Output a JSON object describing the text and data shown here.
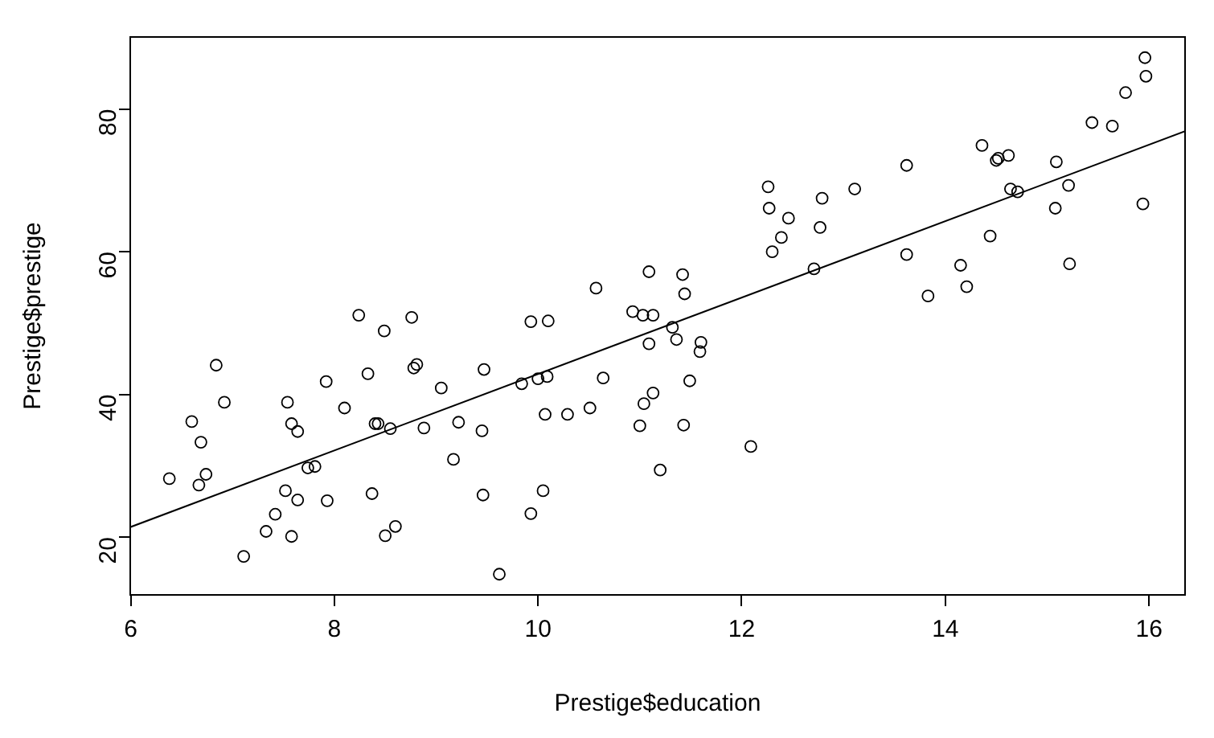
{
  "chart_data": {
    "type": "scatter",
    "xlabel": "Prestige$education",
    "ylabel": "Prestige$prestige",
    "xlim": [
      5.996,
      16.354
    ],
    "ylim": [
      11.9,
      90.1
    ],
    "xticks": [
      6,
      8,
      10,
      12,
      14,
      16
    ],
    "yticks": [
      20,
      40,
      60,
      80
    ],
    "grid": false,
    "legend": false,
    "marker": "circle",
    "series": [
      {
        "type": "scatter",
        "color": "#000000",
        "x": [
          13.11,
          12.26,
          12.77,
          11.42,
          14.62,
          15.64,
          15.09,
          15.44,
          14.52,
          14.64,
          12.39,
          12.3,
          13.83,
          14.44,
          14.36,
          14.21,
          15.77,
          14.15,
          15.22,
          14.5,
          15.97,
          13.62,
          15.08,
          15.96,
          15.94,
          14.71,
          12.46,
          9.45,
          13.62,
          15.21,
          12.79,
          11.09,
          12.71,
          11.44,
          11.59,
          11.49,
          11.32,
          10.64,
          11.36,
          9.17,
          12.09,
          11.04,
          9.22,
          10.07,
          10.51,
          11.2,
          11.13,
          11.43,
          11.0,
          9.84,
          11.13,
          10.05,
          9.62,
          9.93,
          11.6,
          11.09,
          11.03,
          9.47,
          10.93,
          7.74,
          8.5,
          10.57,
          9.46,
          7.33,
          7.11,
          7.58,
          6.84,
          8.6,
          8.88,
          7.54,
          7.64,
          7.64,
          7.42,
          6.69,
          6.74,
          10.09,
          8.81,
          8.4,
          7.92,
          8.43,
          8.78,
          8.76,
          10.29,
          6.38,
          8.1,
          10.1,
          6.67,
          9.05,
          9.93,
          8.24,
          6.92,
          6.6,
          7.81,
          8.33,
          7.52,
          12.27,
          8.49,
          7.58,
          7.93,
          8.37,
          10.0,
          8.55
        ],
        "values": [
          68.8,
          69.1,
          63.4,
          56.8,
          73.5,
          77.6,
          72.6,
          78.1,
          73.1,
          68.8,
          62.0,
          60.0,
          53.8,
          62.2,
          74.9,
          55.1,
          82.3,
          58.1,
          58.3,
          72.8,
          84.6,
          59.6,
          66.1,
          87.2,
          66.7,
          68.4,
          64.7,
          34.9,
          72.1,
          69.3,
          67.5,
          57.2,
          57.6,
          54.1,
          46.0,
          41.9,
          49.4,
          42.3,
          47.7,
          30.9,
          32.7,
          38.7,
          36.1,
          37.2,
          38.1,
          29.4,
          51.1,
          35.7,
          35.6,
          41.5,
          40.2,
          26.5,
          14.8,
          23.3,
          47.3,
          47.1,
          51.1,
          43.5,
          51.6,
          29.7,
          20.2,
          54.9,
          25.9,
          20.8,
          17.3,
          20.1,
          44.1,
          21.5,
          35.3,
          38.9,
          25.2,
          34.8,
          23.2,
          33.3,
          28.8,
          42.5,
          44.2,
          35.9,
          41.8,
          35.9,
          43.7,
          50.8,
          37.2,
          28.2,
          38.1,
          50.3,
          27.3,
          40.9,
          50.2,
          51.1,
          38.9,
          36.2,
          29.9,
          42.9,
          26.5,
          66.1,
          48.9,
          35.9,
          25.1,
          26.1,
          42.2,
          35.2
        ]
      },
      {
        "type": "line",
        "color": "#000000",
        "marker": "none",
        "line_style": "solid",
        "x": [
          5.996,
          16.354
        ],
        "values": [
          21.4,
          76.9
        ]
      }
    ]
  }
}
